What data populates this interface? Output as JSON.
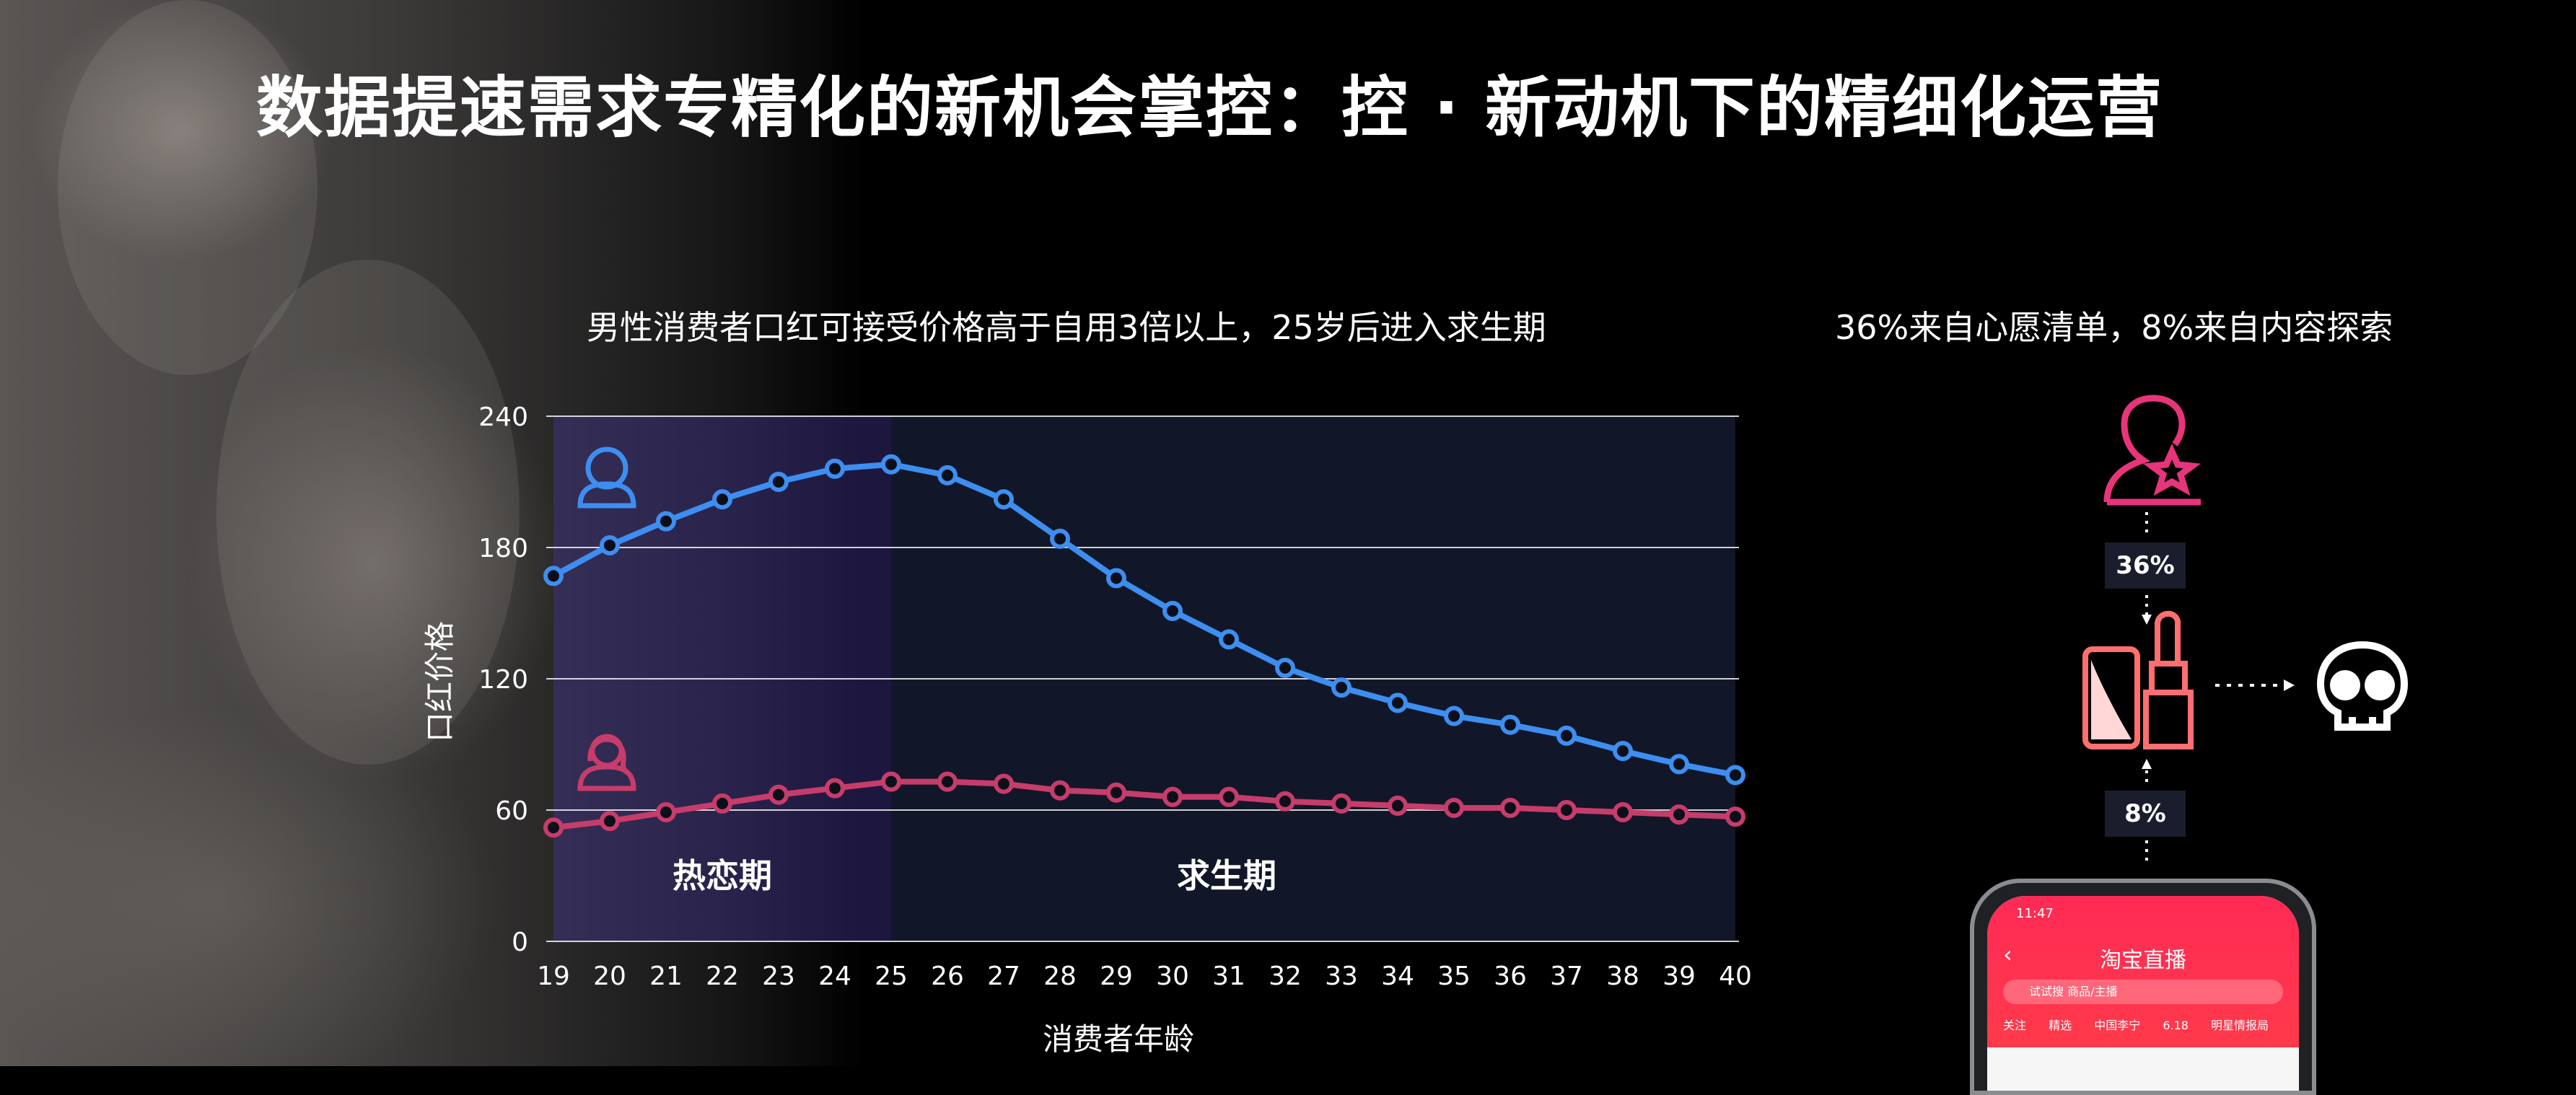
{
  "title": "数据提速需求专精化的新机会掌控：控 · 新动机下的精细化运营",
  "left_panel": {
    "subtitle": "男性消费者口红可接受价格高于自用3倍以上，25岁后进入求生期",
    "zones": [
      "热恋期",
      "求生期"
    ]
  },
  "right_panel": {
    "subtitle": "36%来自心愿清单，8%来自内容探索",
    "badge_top": "36%",
    "badge_bottom": "8%",
    "icons": [
      "wishlist-star-icon",
      "lipstick-icon",
      "skull-icon"
    ]
  },
  "phone": {
    "status_time": "11:47",
    "title": "淘宝直播",
    "search_placeholder": "试试搜 商品/主播",
    "tabs": [
      "关注",
      "精选",
      "中国李宁",
      "6.18",
      "明星情报局"
    ]
  },
  "chart_data": {
    "type": "line",
    "title": "",
    "xlabel": "消费者年龄",
    "ylabel": "口红价格",
    "x": [
      19,
      20,
      21,
      22,
      23,
      24,
      25,
      26,
      27,
      28,
      29,
      30,
      31,
      32,
      33,
      34,
      35,
      36,
      37,
      38,
      39,
      40
    ],
    "ylim": [
      0,
      240
    ],
    "yticks": [
      0,
      60,
      120,
      180,
      240
    ],
    "grid": true,
    "series": [
      {
        "name": "",
        "legend_icon": "male-user-icon",
        "color": "#3d8ef0",
        "values": [
          167,
          181,
          192,
          202,
          210,
          216,
          218,
          213,
          202,
          184,
          166,
          151,
          138,
          125,
          116,
          109,
          103,
          99,
          94,
          87,
          81,
          76
        ]
      },
      {
        "name": "",
        "legend_icon": "female-user-icon",
        "color": "#c63c6a",
        "values": [
          52,
          55,
          59,
          63,
          67,
          70,
          73,
          73,
          72,
          69,
          68,
          66,
          66,
          64,
          63,
          62,
          61,
          61,
          60,
          59,
          58,
          57
        ]
      }
    ],
    "regions": [
      {
        "label": "热恋期",
        "from": 19,
        "to": 25
      },
      {
        "label": "求生期",
        "from": 25,
        "to": 40
      }
    ]
  }
}
